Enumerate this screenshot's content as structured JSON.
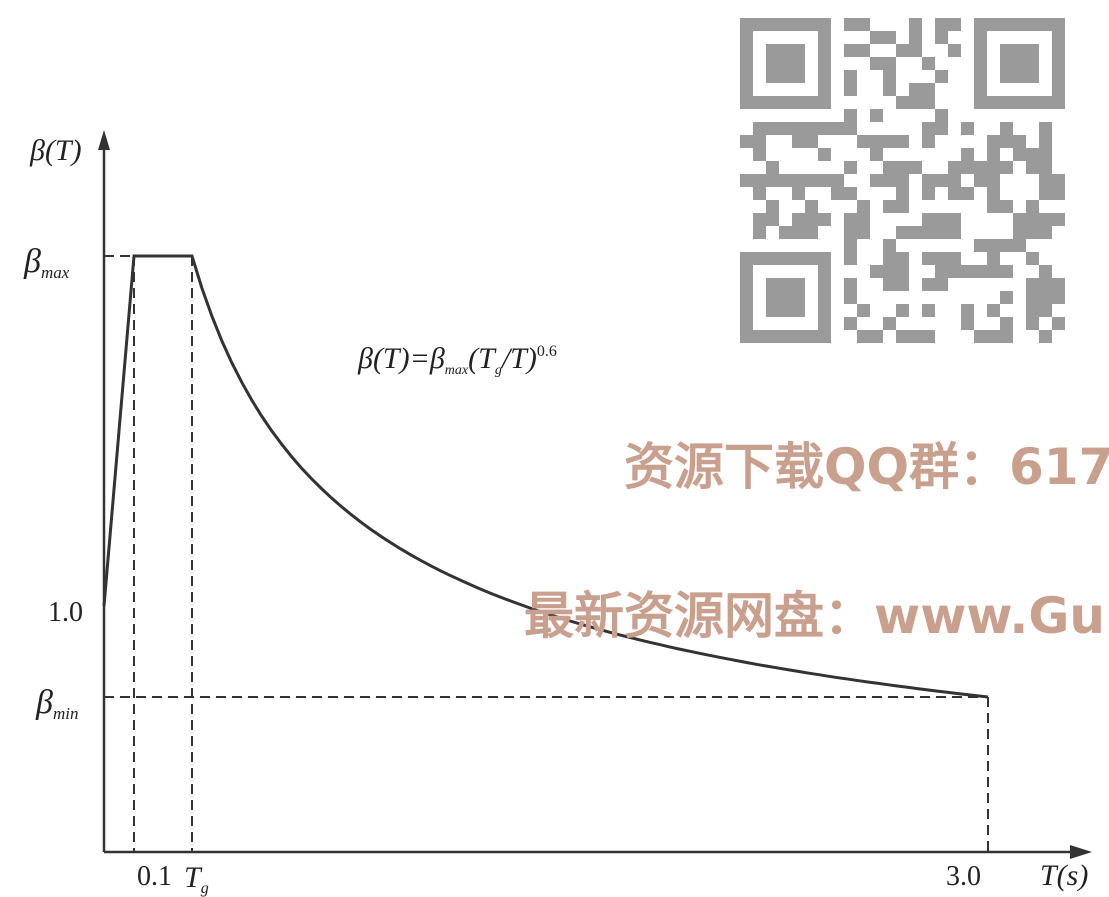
{
  "header_fragment": "",
  "chart_data": {
    "type": "line",
    "title": "",
    "xlabel": "T(s)",
    "ylabel": "β(T)",
    "x_ticks": [
      "0.1",
      "T_g",
      "3.0"
    ],
    "y_ticks": [
      "β_max",
      "1.0",
      "β_min"
    ],
    "formula": {
      "prefix": "β(T)=β",
      "sub_max": "max",
      "mid": "(T",
      "sub_g": "g",
      "suffix": "/T)",
      "exp": "0.6"
    },
    "series": [
      {
        "segments": [
          {
            "from": "T=0, β=1.0",
            "to": "T=0.1, β=β_max",
            "shape": "linear"
          },
          {
            "from": "T=0.1",
            "to": "T=T_g",
            "shape": "constant β_max"
          },
          {
            "from": "T=T_g",
            "to": "T=3.0, β=β_min",
            "shape": "β_max(T_g/T)^0.6"
          }
        ]
      }
    ],
    "grid": false,
    "legend": "none"
  },
  "watermark": {
    "line1": "资源下载QQ群：617",
    "line2": "最新资源网盘：www.Gui",
    "color": "#c9a08e",
    "qr_color": "#9a9a9a"
  }
}
